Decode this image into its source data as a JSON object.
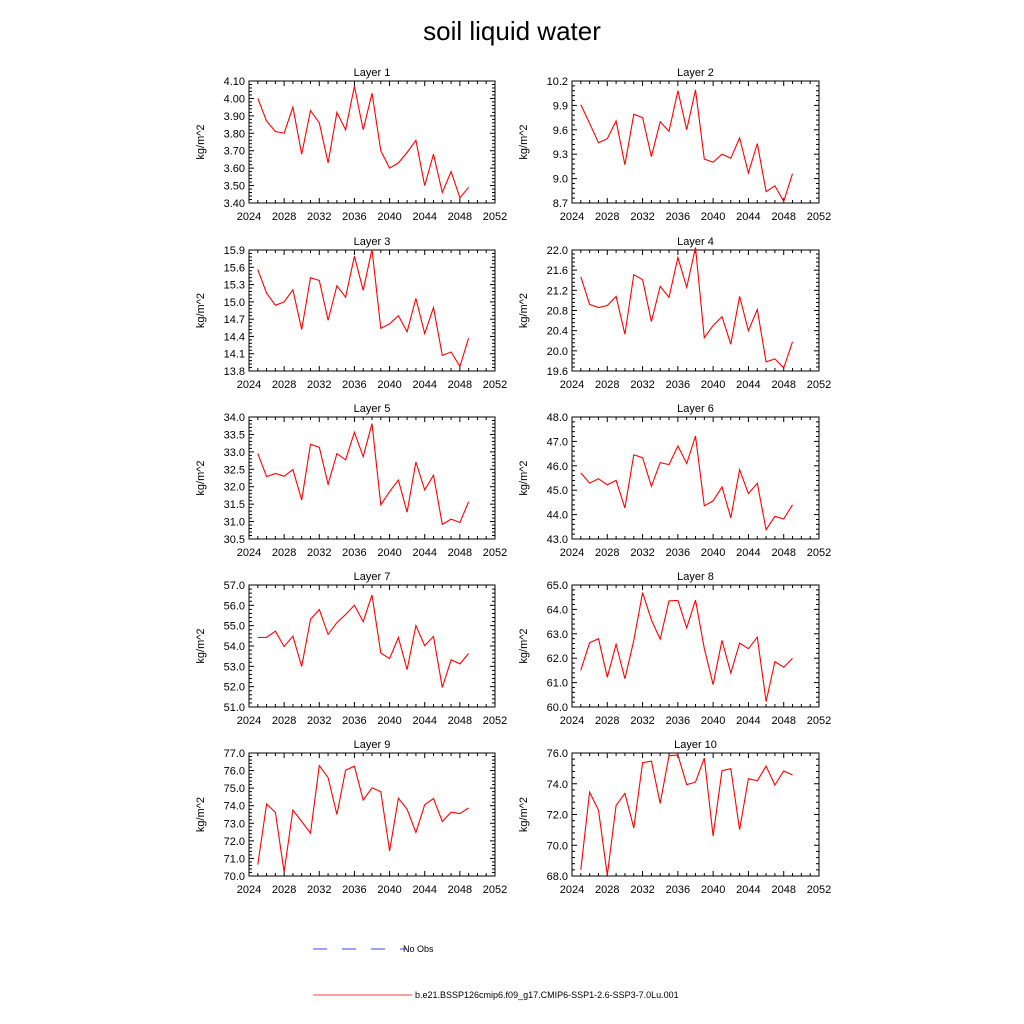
{
  "title": "soil liquid water",
  "legend": [
    {
      "label": "No Obs",
      "color": "#0000ff",
      "dashed": true
    },
    {
      "label": "b.e21.BSSP126cmip6.f09_g17.CMIP6-SSP1-2.6-SSP3-7.0Lu.001",
      "color": "#ff0000",
      "dashed": false
    }
  ],
  "colors": {
    "series": "#ff0000",
    "obs": "#0000ff",
    "axis": "#000000"
  },
  "chart_data": [
    {
      "type": "line",
      "title": "Layer 1",
      "ylabel": "kg/m^2",
      "xlim": [
        2024,
        2052
      ],
      "xticks": [
        "2024",
        "2028",
        "2032",
        "2036",
        "2040",
        "2044",
        "2048",
        "2052"
      ],
      "ylim": [
        3.4,
        4.1
      ],
      "yticks": [
        "3.40",
        "3.50",
        "3.60",
        "3.70",
        "3.80",
        "3.90",
        "4.00",
        "4.10"
      ],
      "x": [
        2025,
        2026,
        2027,
        2028,
        2029,
        2030,
        2031,
        2032,
        2033,
        2034,
        2035,
        2036,
        2037,
        2038,
        2039,
        2040,
        2041,
        2042,
        2043,
        2044,
        2045,
        2046,
        2047,
        2048,
        2049
      ],
      "values": [
        4.0,
        3.87,
        3.81,
        3.8,
        3.95,
        3.68,
        3.93,
        3.86,
        3.63,
        3.92,
        3.82,
        4.07,
        3.82,
        4.03,
        3.7,
        3.6,
        3.63,
        3.69,
        3.76,
        3.5,
        3.68,
        3.46,
        3.58,
        3.43,
        3.49
      ]
    },
    {
      "type": "line",
      "title": "Layer 2",
      "ylabel": "kg/m^2",
      "xlim": [
        2024,
        2052
      ],
      "xticks": [
        "2024",
        "2028",
        "2032",
        "2036",
        "2040",
        "2044",
        "2048",
        "2052"
      ],
      "ylim": [
        8.7,
        10.2
      ],
      "yticks": [
        "8.7",
        "9.0",
        "9.3",
        "9.6",
        "9.9",
        "10.2"
      ],
      "x": [
        2025,
        2026,
        2027,
        2028,
        2029,
        2030,
        2031,
        2032,
        2033,
        2034,
        2035,
        2036,
        2037,
        2038,
        2039,
        2040,
        2041,
        2042,
        2043,
        2044,
        2045,
        2046,
        2047,
        2048,
        2049
      ],
      "values": [
        9.91,
        9.68,
        9.44,
        9.49,
        9.71,
        9.17,
        9.79,
        9.75,
        9.27,
        9.7,
        9.58,
        10.08,
        9.6,
        10.09,
        9.24,
        9.2,
        9.3,
        9.25,
        9.5,
        9.07,
        9.43,
        8.84,
        8.91,
        8.72,
        9.06
      ]
    },
    {
      "type": "line",
      "title": "Layer 3",
      "ylabel": "kg/m^2",
      "xlim": [
        2024,
        2052
      ],
      "xticks": [
        "2024",
        "2028",
        "2032",
        "2036",
        "2040",
        "2044",
        "2048",
        "2052"
      ],
      "ylim": [
        13.8,
        15.9
      ],
      "yticks": [
        "13.8",
        "14.1",
        "14.4",
        "14.7",
        "15.0",
        "15.3",
        "15.6",
        "15.9"
      ],
      "x": [
        2025,
        2026,
        2027,
        2028,
        2029,
        2030,
        2031,
        2032,
        2033,
        2034,
        2035,
        2036,
        2037,
        2038,
        2039,
        2040,
        2041,
        2042,
        2043,
        2044,
        2045,
        2046,
        2047,
        2048,
        2049
      ],
      "values": [
        15.56,
        15.15,
        14.94,
        15.0,
        15.21,
        14.52,
        15.42,
        15.37,
        14.68,
        15.28,
        15.08,
        15.79,
        15.2,
        15.91,
        14.54,
        14.62,
        14.76,
        14.48,
        15.06,
        14.45,
        14.9,
        14.07,
        14.13,
        13.88,
        14.37
      ]
    },
    {
      "type": "line",
      "title": "Layer 4",
      "ylabel": "kg/m^2",
      "xlim": [
        2024,
        2052
      ],
      "xticks": [
        "2024",
        "2028",
        "2032",
        "2036",
        "2040",
        "2044",
        "2048",
        "2052"
      ],
      "ylim": [
        19.6,
        22.0
      ],
      "yticks": [
        "19.6",
        "20.0",
        "20.4",
        "20.8",
        "21.2",
        "21.6",
        "22.0"
      ],
      "x": [
        2025,
        2026,
        2027,
        2028,
        2029,
        2030,
        2031,
        2032,
        2033,
        2034,
        2035,
        2036,
        2037,
        2038,
        2039,
        2040,
        2041,
        2042,
        2043,
        2044,
        2045,
        2046,
        2047,
        2048,
        2049
      ],
      "values": [
        21.47,
        20.92,
        20.86,
        20.9,
        21.08,
        20.33,
        21.51,
        21.41,
        20.58,
        21.28,
        21.06,
        21.85,
        21.26,
        22.05,
        20.26,
        20.5,
        20.68,
        20.13,
        21.08,
        20.4,
        20.82,
        19.78,
        19.84,
        19.66,
        20.18
      ]
    },
    {
      "type": "line",
      "title": "Layer 5",
      "ylabel": "kg/m^2",
      "xlim": [
        2024,
        2052
      ],
      "xticks": [
        "2024",
        "2028",
        "2032",
        "2036",
        "2040",
        "2044",
        "2048",
        "2052"
      ],
      "ylim": [
        30.5,
        34.0
      ],
      "yticks": [
        "30.5",
        "31.0",
        "31.5",
        "32.0",
        "32.5",
        "33.0",
        "33.5",
        "34.0"
      ],
      "x": [
        2025,
        2026,
        2027,
        2028,
        2029,
        2030,
        2031,
        2032,
        2033,
        2034,
        2035,
        2036,
        2037,
        2038,
        2039,
        2040,
        2041,
        2042,
        2043,
        2044,
        2045,
        2046,
        2047,
        2048,
        2049
      ],
      "values": [
        32.95,
        32.29,
        32.38,
        32.3,
        32.49,
        31.62,
        33.22,
        33.13,
        32.07,
        32.95,
        32.77,
        33.56,
        32.86,
        33.81,
        31.48,
        31.86,
        32.19,
        31.27,
        32.71,
        31.91,
        32.33,
        30.92,
        31.07,
        30.97,
        31.57
      ]
    },
    {
      "type": "line",
      "title": "Layer 6",
      "ylabel": "kg/m^2",
      "xlim": [
        2024,
        2052
      ],
      "xticks": [
        "2024",
        "2028",
        "2032",
        "2036",
        "2040",
        "2044",
        "2048",
        "2052"
      ],
      "ylim": [
        43.0,
        48.0
      ],
      "yticks": [
        "43.0",
        "44.0",
        "45.0",
        "46.0",
        "47.0",
        "48.0"
      ],
      "x": [
        2025,
        2026,
        2027,
        2028,
        2029,
        2030,
        2031,
        2032,
        2033,
        2034,
        2035,
        2036,
        2037,
        2038,
        2039,
        2040,
        2041,
        2042,
        2043,
        2044,
        2045,
        2046,
        2047,
        2048,
        2049
      ],
      "values": [
        45.71,
        45.29,
        45.47,
        45.22,
        45.4,
        44.27,
        46.45,
        46.33,
        45.16,
        46.13,
        46.05,
        46.81,
        46.09,
        47.22,
        44.36,
        44.56,
        45.13,
        43.87,
        45.84,
        44.86,
        45.28,
        43.38,
        43.93,
        43.82,
        44.4
      ]
    },
    {
      "type": "line",
      "title": "Layer 7",
      "ylabel": "kg/m^2",
      "xlim": [
        2024,
        2052
      ],
      "xticks": [
        "2024",
        "2028",
        "2032",
        "2036",
        "2040",
        "2044",
        "2048",
        "2052"
      ],
      "ylim": [
        51.0,
        57.0
      ],
      "yticks": [
        "51.0",
        "52.0",
        "53.0",
        "54.0",
        "55.0",
        "56.0",
        "57.0"
      ],
      "x": [
        2025,
        2026,
        2027,
        2028,
        2029,
        2030,
        2031,
        2032,
        2033,
        2034,
        2035,
        2036,
        2037,
        2038,
        2039,
        2040,
        2041,
        2042,
        2043,
        2044,
        2045,
        2046,
        2047,
        2048,
        2049
      ],
      "values": [
        54.42,
        54.43,
        54.73,
        53.97,
        54.48,
        52.99,
        55.31,
        55.79,
        54.57,
        55.15,
        55.55,
        56.0,
        55.2,
        56.51,
        53.65,
        53.38,
        54.42,
        52.84,
        55.0,
        54.02,
        54.47,
        51.96,
        53.32,
        53.12,
        53.63
      ]
    },
    {
      "type": "line",
      "title": "Layer 8",
      "ylabel": "kg/m^2",
      "xlim": [
        2024,
        2052
      ],
      "xticks": [
        "2024",
        "2028",
        "2032",
        "2036",
        "2040",
        "2044",
        "2048",
        "2052"
      ],
      "ylim": [
        60.0,
        65.0
      ],
      "yticks": [
        "60.0",
        "61.0",
        "62.0",
        "63.0",
        "64.0",
        "65.0"
      ],
      "x": [
        2025,
        2026,
        2027,
        2028,
        2029,
        2030,
        2031,
        2032,
        2033,
        2034,
        2035,
        2036,
        2037,
        2038,
        2039,
        2040,
        2041,
        2042,
        2043,
        2044,
        2045,
        2046,
        2047,
        2048,
        2049
      ],
      "values": [
        61.51,
        62.63,
        62.8,
        61.22,
        62.57,
        61.16,
        62.73,
        64.69,
        63.57,
        62.78,
        64.35,
        64.37,
        63.24,
        64.38,
        62.4,
        60.92,
        62.73,
        61.39,
        62.62,
        62.39,
        62.86,
        60.22,
        61.86,
        61.63,
        62.0
      ]
    },
    {
      "type": "line",
      "title": "Layer 9",
      "ylabel": "kg/m^2",
      "xlim": [
        2024,
        2052
      ],
      "xticks": [
        "2024",
        "2028",
        "2032",
        "2036",
        "2040",
        "2044",
        "2048",
        "2052"
      ],
      "ylim": [
        70.0,
        77.0
      ],
      "yticks": [
        "70.0",
        "71.0",
        "72.0",
        "73.0",
        "74.0",
        "75.0",
        "76.0",
        "77.0"
      ],
      "x": [
        2025,
        2026,
        2027,
        2028,
        2029,
        2030,
        2031,
        2032,
        2033,
        2034,
        2035,
        2036,
        2037,
        2038,
        2039,
        2040,
        2041,
        2042,
        2043,
        2044,
        2045,
        2046,
        2047,
        2048,
        2049
      ],
      "values": [
        70.65,
        74.1,
        73.62,
        70.23,
        73.75,
        73.1,
        72.44,
        76.28,
        75.6,
        73.5,
        76.02,
        76.25,
        74.32,
        75.02,
        74.79,
        71.43,
        74.42,
        73.8,
        72.48,
        74.06,
        74.41,
        73.1,
        73.63,
        73.55,
        73.87
      ]
    },
    {
      "type": "line",
      "title": "Layer 10",
      "ylabel": "kg/m^2",
      "xlim": [
        2024,
        2052
      ],
      "xticks": [
        "2024",
        "2028",
        "2032",
        "2036",
        "2040",
        "2044",
        "2048",
        "2052"
      ],
      "ylim": [
        68.0,
        76.0
      ],
      "yticks": [
        "68.0",
        "70.0",
        "72.0",
        "74.0",
        "76.0"
      ],
      "x": [
        2025,
        2026,
        2027,
        2028,
        2029,
        2030,
        2031,
        2032,
        2033,
        2034,
        2035,
        2036,
        2037,
        2038,
        2039,
        2040,
        2041,
        2042,
        2043,
        2044,
        2045,
        2046,
        2047,
        2048,
        2049
      ],
      "values": [
        68.4,
        73.45,
        72.27,
        68.05,
        72.59,
        73.37,
        71.12,
        75.37,
        75.47,
        72.72,
        75.82,
        75.87,
        73.94,
        74.11,
        75.67,
        70.61,
        74.85,
        74.98,
        71.01,
        74.33,
        74.19,
        75.14,
        73.92,
        74.83,
        74.57
      ]
    }
  ]
}
